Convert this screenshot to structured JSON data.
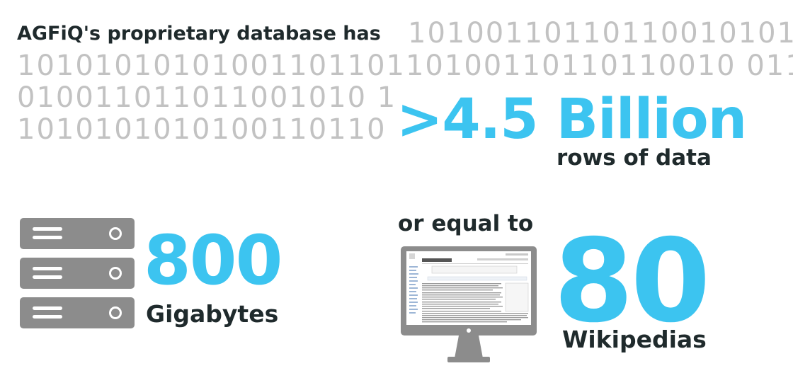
{
  "headline": {
    "intro": "AGFiQ's proprietary database has",
    "binary_rows": [
      "10100110110110010101",
      "1010101010100110110110100110110110010 011",
      "010011011011001010 1",
      "1010101010100110110"
    ],
    "big_number": ">4.5 Billion",
    "caption": "rows of data"
  },
  "storage": {
    "value": "800",
    "unit": "Gigabytes"
  },
  "comparison": {
    "lead": "or equal to",
    "value": "80",
    "unit": "Wikipedias"
  },
  "icons": {
    "server": "server-stack-icon",
    "monitor": "monitor-wikipedia-icon"
  },
  "colors": {
    "accent": "#3cc4f0",
    "dark_text": "#1f2a2c",
    "binary": "#c2c2c2",
    "icon_gray": "#8c8c8c"
  }
}
